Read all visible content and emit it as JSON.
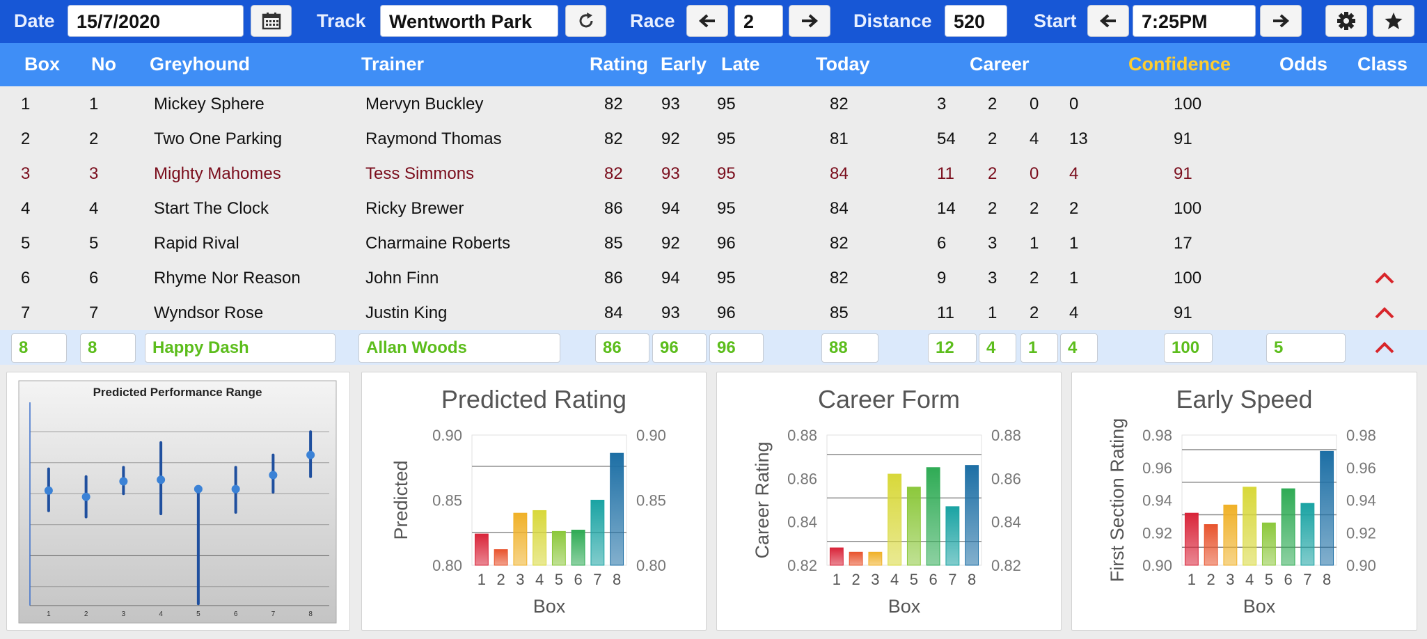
{
  "toolbar": {
    "date_label": "Date",
    "date_value": "15/7/2020",
    "calendar_icon": "calendar-icon",
    "track_label": "Track",
    "track_value": "Wentworth Park",
    "refresh_icon": "refresh-icon",
    "race_label": "Race",
    "race_value": "2",
    "distance_label": "Distance",
    "distance_value": "520",
    "start_label": "Start",
    "start_value": "7:25PM",
    "settings_icon": "gear-icon",
    "favorite_icon": "star-icon"
  },
  "columns": {
    "box": "Box",
    "no": "No",
    "greyhound": "Greyhound",
    "trainer": "Trainer",
    "rating": "Rating",
    "early": "Early",
    "late": "Late",
    "today": "Today",
    "career": "Career",
    "confidence": "Confidence",
    "odds": "Odds",
    "class": "Class"
  },
  "runners": [
    {
      "box": "1",
      "no": "1",
      "greyhound": "Mickey Sphere",
      "trainer": "Mervyn Buckley",
      "rating": "82",
      "early": "93",
      "late": "95",
      "today": "82",
      "career": [
        "3",
        "2",
        "0",
        "0"
      ],
      "confidence": "100",
      "odds": "",
      "class_up": false
    },
    {
      "box": "2",
      "no": "2",
      "greyhound": "Two One Parking",
      "trainer": "Raymond Thomas",
      "rating": "82",
      "early": "92",
      "late": "95",
      "today": "81",
      "career": [
        "54",
        "2",
        "4",
        "13"
      ],
      "confidence": "91",
      "odds": "",
      "class_up": false
    },
    {
      "box": "3",
      "no": "3",
      "greyhound": "Mighty Mahomes",
      "trainer": "Tess Simmons",
      "rating": "82",
      "early": "93",
      "late": "95",
      "today": "84",
      "career": [
        "11",
        "2",
        "0",
        "4"
      ],
      "confidence": "91",
      "odds": "",
      "class_up": false
    },
    {
      "box": "4",
      "no": "4",
      "greyhound": "Start The Clock",
      "trainer": "Ricky Brewer",
      "rating": "86",
      "early": "94",
      "late": "95",
      "today": "84",
      "career": [
        "14",
        "2",
        "2",
        "2"
      ],
      "confidence": "100",
      "odds": "",
      "class_up": false
    },
    {
      "box": "5",
      "no": "5",
      "greyhound": "Rapid Rival",
      "trainer": "Charmaine Roberts",
      "rating": "85",
      "early": "92",
      "late": "96",
      "today": "82",
      "career": [
        "6",
        "3",
        "1",
        "1"
      ],
      "confidence": "17",
      "odds": "",
      "class_up": false
    },
    {
      "box": "6",
      "no": "6",
      "greyhound": "Rhyme Nor Reason",
      "trainer": "John Finn",
      "rating": "86",
      "early": "94",
      "late": "95",
      "today": "82",
      "career": [
        "9",
        "3",
        "2",
        "1"
      ],
      "confidence": "100",
      "odds": "",
      "class_up": true
    },
    {
      "box": "7",
      "no": "7",
      "greyhound": "Wyndsor Rose",
      "trainer": "Justin King",
      "rating": "84",
      "early": "93",
      "late": "96",
      "today": "85",
      "career": [
        "11",
        "1",
        "2",
        "4"
      ],
      "confidence": "91",
      "odds": "",
      "class_up": true
    }
  ],
  "highlighted_row_index": 2,
  "selected": {
    "box": "8",
    "no": "8",
    "greyhound": "Happy Dash",
    "trainer": "Allan Woods",
    "rating": "86",
    "early": "96",
    "late": "96",
    "today": "88",
    "career": [
      "12",
      "4",
      "1",
      "4"
    ],
    "confidence": "100",
    "odds": "5",
    "class_up": true
  },
  "colors": {
    "toolbar": "#1757d6",
    "header": "#3f8ef6",
    "confidence_header": "#ffcd2e",
    "highlight_text": "#7a0d1c",
    "selected_text": "#5cbd1c",
    "class_up_arrow": "#d8252a"
  },
  "class_up_icon": "chevron-up-icon",
  "chart_data": [
    {
      "type": "errorbar",
      "title": "Predicted Performance Range",
      "categories": [
        "1",
        "2",
        "3",
        "4",
        "5",
        "6",
        "7",
        "8"
      ],
      "values": [
        0.842,
        0.838,
        0.848,
        0.849,
        0.843,
        0.843,
        0.852,
        0.865
      ],
      "low": [
        0.829,
        0.825,
        0.84,
        0.827,
        0.769,
        0.828,
        0.841,
        0.851
      ],
      "high": [
        0.856,
        0.851,
        0.857,
        0.873,
        0.843,
        0.857,
        0.865,
        0.88
      ],
      "ylim": [
        0.77,
        0.89
      ],
      "grid": true,
      "legend": "none"
    },
    {
      "type": "bar",
      "title": "Predicted Rating",
      "xlabel": "Box",
      "ylabel": "Predicted",
      "categories": [
        "1",
        "2",
        "3",
        "4",
        "5",
        "6",
        "7",
        "8"
      ],
      "values": [
        0.824,
        0.812,
        0.84,
        0.842,
        0.826,
        0.827,
        0.85,
        0.886
      ],
      "ylim": [
        0.8,
        0.9
      ],
      "yticks": [
        "0.80",
        "0.85",
        "0.90"
      ],
      "reference_lines": [
        0.876,
        0.825
      ],
      "bar_colors": [
        "#d9253a",
        "#e8542e",
        "#f0b128",
        "#d8d83a",
        "#8cc83c",
        "#2fab55",
        "#1aa3a3",
        "#1d6fa5"
      ],
      "grid": false,
      "legend": "none"
    },
    {
      "type": "bar",
      "title": "Career Form",
      "xlabel": "Box",
      "ylabel": "Career Rating",
      "categories": [
        "1",
        "2",
        "3",
        "4",
        "5",
        "6",
        "7",
        "8"
      ],
      "values": [
        0.828,
        0.826,
        0.826,
        0.862,
        0.856,
        0.865,
        0.847,
        0.866
      ],
      "ylim": [
        0.82,
        0.88
      ],
      "yticks": [
        "0.82",
        "0.84",
        "0.86",
        "0.88"
      ],
      "reference_lines": [
        0.871,
        0.851,
        0.831
      ],
      "bar_colors": [
        "#d9253a",
        "#e8542e",
        "#f0b128",
        "#d8d83a",
        "#8cc83c",
        "#2fab55",
        "#1aa3a3",
        "#1d6fa5"
      ],
      "grid": false,
      "legend": "none"
    },
    {
      "type": "bar",
      "title": "Early Speed",
      "xlabel": "Box",
      "ylabel": "First Section Rating",
      "categories": [
        "1",
        "2",
        "3",
        "4",
        "5",
        "6",
        "7",
        "8"
      ],
      "values": [
        0.932,
        0.925,
        0.937,
        0.948,
        0.926,
        0.947,
        0.938,
        0.97
      ],
      "ylim": [
        0.9,
        0.98
      ],
      "yticks": [
        "0.90",
        "0.92",
        "0.94",
        "0.96",
        "0.98"
      ],
      "reference_lines": [
        0.971,
        0.951,
        0.931,
        0.911
      ],
      "bar_colors": [
        "#d9253a",
        "#e8542e",
        "#f0b128",
        "#d8d83a",
        "#8cc83c",
        "#2fab55",
        "#1aa3a3",
        "#1d6fa5"
      ],
      "grid": false,
      "legend": "none"
    }
  ]
}
